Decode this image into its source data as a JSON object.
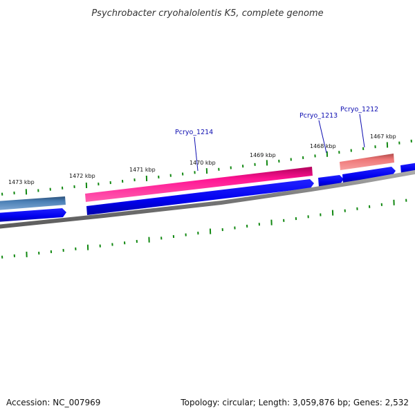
{
  "title": "Psychrobacter cryohalolentis K5, complete genome",
  "footer": {
    "accession": "Accession: NC_007969",
    "summary": "Topology: circular; Length: 3,059,876 bp; Genes: 2,532"
  },
  "scale_labels": [
    "1473 kbp",
    "1472 kbp",
    "1471 kbp",
    "1470 kbp",
    "1469 kbp",
    "1468 kbp",
    "1467 kbp"
  ],
  "gene_labels": [
    "Pcryo_1214",
    "Pcryo_1213",
    "Pcryo_1212"
  ],
  "colors": {
    "ticks": "#118811",
    "cds_track": "#0000ee",
    "backbone": "#808080",
    "feature_pink": "#ff1493",
    "feature_salmon": "#ee7777",
    "feature_steelblue": "#4a7fb5",
    "gene_label": "#0b0bb0"
  }
}
